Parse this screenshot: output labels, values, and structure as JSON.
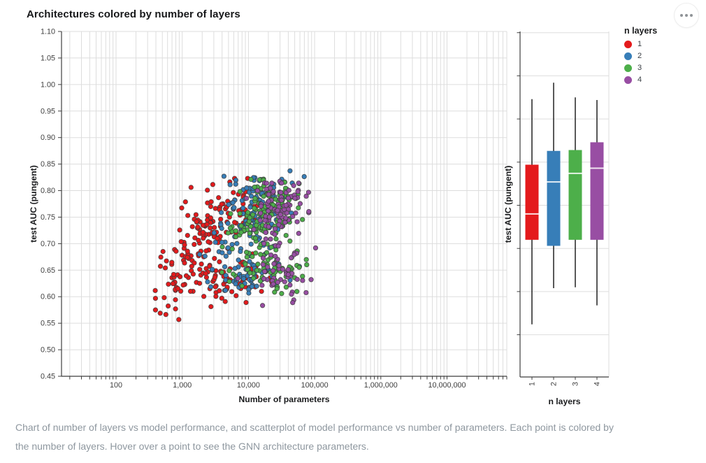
{
  "title": "Architectures colored by number of layers",
  "caption": "Chart of number of layers vs model performance, and scatterplot of model performance vs number of parameters. Each point is colored by the number of layers. Hover over a point to see the GNN architecture parameters.",
  "legend": {
    "title": "n layers",
    "items": [
      {
        "label": "1",
        "color": "#e41a1c"
      },
      {
        "label": "2",
        "color": "#377eb8"
      },
      {
        "label": "3",
        "color": "#4daf4a"
      },
      {
        "label": "4",
        "color": "#984ea3"
      }
    ]
  },
  "colors": {
    "grid": "#dddddd",
    "axis": "#3f3f3f",
    "tick_label": "#3f3f3f",
    "axis_title": "#1b1c1e",
    "median_line": "#ffffff"
  },
  "chart_data": [
    {
      "type": "scatter",
      "title": "Architectures colored by number of layers",
      "xlabel": "Number of parameters",
      "ylabel": "test AUC (pungent)",
      "x_scale": "log",
      "x_domain": [
        15,
        80000000
      ],
      "x_ticks": [
        {
          "value": 100,
          "label": "100"
        },
        {
          "value": 1000,
          "label": "1,000"
        },
        {
          "value": 10000,
          "label": "10,000"
        },
        {
          "value": 100000,
          "label": "100,000"
        },
        {
          "value": 1000000,
          "label": "1,000,000"
        },
        {
          "value": 10000000,
          "label": "10,000,000"
        }
      ],
      "y_domain": [
        0.45,
        1.1
      ],
      "y_ticks": [
        0.45,
        0.5,
        0.55,
        0.6,
        0.65,
        0.7,
        0.75,
        0.8,
        0.85,
        0.9,
        0.95,
        1.0,
        1.05,
        1.1
      ],
      "grid": true,
      "legend_position": "right",
      "point_style": {
        "radius": 3.2,
        "stroke": "#3a3a3a"
      },
      "series": [
        {
          "name": "1",
          "color": "#e41a1c",
          "approx_points": 230,
          "x_range": [
            400,
            28000
          ],
          "y_range": [
            0.556,
            0.824
          ],
          "clip_lx": [
            2.58,
            4.45
          ],
          "clip_y": [
            0.556,
            0.824
          ],
          "clusters": [
            {
              "n": 140,
              "cx": 3.35,
              "cy": 0.715,
              "sx": 0.36,
              "sy": 0.042,
              "slope": 0.1
            },
            {
              "n": 55,
              "cx": 3.75,
              "cy": 0.638,
              "sx": 0.28,
              "sy": 0.022,
              "slope": 0.0
            },
            {
              "n": 35,
              "cx": 2.98,
              "cy": 0.625,
              "sx": 0.2,
              "sy": 0.035,
              "slope": 0.12
            }
          ]
        },
        {
          "name": "2",
          "color": "#377eb8",
          "approx_points": 192,
          "x_range": [
            1000,
            90000
          ],
          "y_range": [
            0.601,
            0.842
          ],
          "clip_lx": [
            2.98,
            4.95
          ],
          "clip_y": [
            0.601,
            0.842
          ],
          "clusters": [
            {
              "n": 130,
              "cx": 4.08,
              "cy": 0.757,
              "sx": 0.3,
              "sy": 0.036,
              "slope": 0.05
            },
            {
              "n": 62,
              "cx": 4.12,
              "cy": 0.642,
              "sx": 0.3,
              "sy": 0.024,
              "slope": 0.0
            }
          ]
        },
        {
          "name": "3",
          "color": "#4daf4a",
          "approx_points": 198,
          "x_range": [
            1600,
            105000
          ],
          "y_range": [
            0.602,
            0.825
          ],
          "clip_lx": [
            3.2,
            5.02
          ],
          "clip_y": [
            0.602,
            0.825
          ],
          "clusters": [
            {
              "n": 138,
              "cx": 4.28,
              "cy": 0.757,
              "sx": 0.27,
              "sy": 0.033,
              "slope": 0.05
            },
            {
              "n": 60,
              "cx": 4.33,
              "cy": 0.648,
              "sx": 0.28,
              "sy": 0.026,
              "slope": 0.0
            }
          ]
        },
        {
          "name": "4",
          "color": "#984ea3",
          "approx_points": 143,
          "x_range": [
            3500,
            126000
          ],
          "y_range": [
            0.58,
            0.822
          ],
          "clip_lx": [
            3.55,
            5.1
          ],
          "clip_y": [
            0.58,
            0.822
          ],
          "clusters": [
            {
              "n": 95,
              "cx": 4.52,
              "cy": 0.768,
              "sx": 0.25,
              "sy": 0.033,
              "slope": 0.06
            },
            {
              "n": 48,
              "cx": 4.5,
              "cy": 0.648,
              "sx": 0.27,
              "sy": 0.03,
              "slope": 0.0
            }
          ]
        }
      ]
    },
    {
      "type": "boxplot",
      "xlabel": "n layers",
      "ylabel": "test AUC (pungent)",
      "categories": [
        "1",
        "2",
        "3",
        "4"
      ],
      "y_domain": [
        0.5,
        0.9
      ],
      "y_ticks": [
        0.55,
        0.6,
        0.65,
        0.7,
        0.75,
        0.8,
        0.85,
        0.9
      ],
      "grid": true,
      "stats": [
        {
          "category": "1",
          "color": "#e41a1c",
          "min": 0.562,
          "q1": 0.66,
          "median": 0.69,
          "q3": 0.747,
          "max": 0.823
        },
        {
          "category": "2",
          "color": "#377eb8",
          "min": 0.604,
          "q1": 0.653,
          "median": 0.727,
          "q3": 0.763,
          "max": 0.842
        },
        {
          "category": "3",
          "color": "#4daf4a",
          "min": 0.605,
          "q1": 0.66,
          "median": 0.737,
          "q3": 0.764,
          "max": 0.825
        },
        {
          "category": "4",
          "color": "#984ea3",
          "min": 0.584,
          "q1": 0.66,
          "median": 0.743,
          "q3": 0.773,
          "max": 0.822
        }
      ]
    }
  ]
}
